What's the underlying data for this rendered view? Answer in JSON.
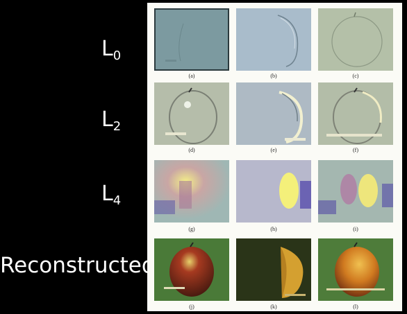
{
  "row_labels": {
    "l0": {
      "base": "L",
      "sub": "0"
    },
    "l2": {
      "base": "L",
      "sub": "2"
    },
    "l4": {
      "base": "L",
      "sub": "4"
    },
    "reconstructed": "Reconstructed"
  },
  "captions": [
    "(a)",
    "(b)",
    "(c)",
    "(d)",
    "(e)",
    "(f)",
    "(g)",
    "(h)",
    "(i)",
    "(j)",
    "(k)",
    "(l)"
  ]
}
